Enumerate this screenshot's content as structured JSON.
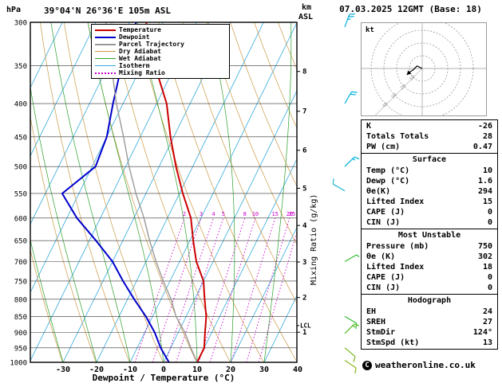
{
  "header": {
    "pressure_unit": "hPa",
    "station_title": "39°04'N 26°36'E 105m ASL",
    "altitude_unit_top": "km",
    "altitude_unit_bottom": "ASL",
    "date_title": "07.03.2025 12GMT (Base: 18)"
  },
  "chart_data": {
    "type": "line",
    "title": "Skew-T log-P sounding",
    "xlabel": "Dewpoint / Temperature (°C)",
    "ylabel_right": "Mixing Ratio (g/kg)",
    "x_ticks": [
      -30,
      -20,
      -10,
      0,
      10,
      20,
      30,
      40
    ],
    "pressure_ticks": [
      300,
      350,
      400,
      450,
      500,
      550,
      600,
      650,
      700,
      750,
      800,
      850,
      900,
      950,
      1000
    ],
    "pressure_range": [
      300,
      1000
    ],
    "km_ticks": [
      {
        "label": "1",
        "p": 899
      },
      {
        "label": "2",
        "p": 795
      },
      {
        "label": "3",
        "p": 701
      },
      {
        "label": "4",
        "p": 616
      },
      {
        "label": "5",
        "p": 540
      },
      {
        "label": "6",
        "p": 472
      },
      {
        "label": "7",
        "p": 411
      },
      {
        "label": "8",
        "p": 357
      }
    ],
    "lcl": {
      "label": "LCL",
      "p": 878
    },
    "mixing_ratio_values": [
      2,
      3,
      4,
      5,
      8,
      10,
      15,
      20,
      25
    ],
    "colors": {
      "temperature": "#cc0000",
      "dewpoint": "#0000cc",
      "parcel": "#999999",
      "dry_adiabat": "#cc9944",
      "wet_adiabat": "#2aa02a",
      "isotherm": "#33aadd",
      "mixing_ratio": "#cc00cc"
    },
    "series": [
      {
        "name": "Temperature",
        "color": "#cc0000",
        "width": 2,
        "points": [
          [
            1000,
            10
          ],
          [
            950,
            10
          ],
          [
            900,
            8
          ],
          [
            850,
            6
          ],
          [
            800,
            3
          ],
          [
            750,
            0
          ],
          [
            700,
            -5
          ],
          [
            650,
            -9
          ],
          [
            600,
            -13
          ],
          [
            550,
            -19
          ],
          [
            500,
            -25
          ],
          [
            450,
            -31
          ],
          [
            400,
            -37
          ],
          [
            350,
            -46
          ],
          [
            300,
            -55
          ]
        ]
      },
      {
        "name": "Dewpoint",
        "color": "#0000cc",
        "width": 2,
        "points": [
          [
            1000,
            1.6
          ],
          [
            950,
            -3
          ],
          [
            900,
            -7
          ],
          [
            850,
            -12
          ],
          [
            800,
            -18
          ],
          [
            750,
            -24
          ],
          [
            700,
            -30
          ],
          [
            650,
            -38
          ],
          [
            600,
            -47
          ],
          [
            550,
            -55
          ],
          [
            500,
            -49
          ],
          [
            450,
            -50
          ],
          [
            400,
            -53
          ],
          [
            350,
            -56
          ],
          [
            300,
            -58
          ]
        ]
      },
      {
        "name": "Parcel Trajectory",
        "color": "#999999",
        "width": 1.4,
        "points": [
          [
            1000,
            10
          ],
          [
            950,
            6
          ],
          [
            900,
            2
          ],
          [
            850,
            -3
          ],
          [
            800,
            -7
          ],
          [
            750,
            -12
          ],
          [
            700,
            -17
          ],
          [
            650,
            -22
          ],
          [
            600,
            -27
          ],
          [
            550,
            -33
          ],
          [
            500,
            -39
          ],
          [
            450,
            -45
          ],
          [
            400,
            -52
          ],
          [
            350,
            -59
          ],
          [
            300,
            -67
          ]
        ]
      }
    ],
    "wind_barbs": [
      {
        "p": 305,
        "dir": 20,
        "speed": 25,
        "color": "#00b0dd"
      },
      {
        "p": 400,
        "dir": 30,
        "speed": 20,
        "color": "#00b0dd"
      },
      {
        "p": 500,
        "dir": 45,
        "speed": 15,
        "color": "#00b0dd"
      },
      {
        "p": 545,
        "dir": 300,
        "speed": 10,
        "color": "#22bbcc"
      },
      {
        "p": 700,
        "dir": 60,
        "speed": 10,
        "color": "#33bb33"
      },
      {
        "p": 850,
        "dir": 120,
        "speed": 10,
        "color": "#33bb33"
      },
      {
        "p": 903,
        "dir": 45,
        "speed": 15,
        "color": "#55bb22"
      },
      {
        "p": 950,
        "dir": 130,
        "speed": 10,
        "color": "#7ab520"
      },
      {
        "p": 993,
        "dir": 124,
        "speed": 13,
        "color": "#8ab520"
      }
    ]
  },
  "legend": {
    "items": [
      {
        "label": "Temperature",
        "color": "#cc0000",
        "thick": 2,
        "style": "solid"
      },
      {
        "label": "Dewpoint",
        "color": "#0000cc",
        "thick": 2,
        "style": "solid"
      },
      {
        "label": "Parcel Trajectory",
        "color": "#999999",
        "thick": 2,
        "style": "solid"
      },
      {
        "label": "Dry Adiabat",
        "color": "#cc9944",
        "thick": 1,
        "style": "solid"
      },
      {
        "label": "Wet Adiabat",
        "color": "#2aa02a",
        "thick": 1,
        "style": "solid"
      },
      {
        "label": "Isotherm",
        "color": "#33aadd",
        "thick": 1,
        "style": "solid"
      },
      {
        "label": "Mixing Ratio",
        "color": "#cc00cc",
        "thick": 2,
        "style": "dotted"
      }
    ]
  },
  "hodograph": {
    "unit_label": "kt",
    "rings_kt": [
      10,
      20,
      30,
      40
    ],
    "ring_labels": [
      "10",
      "20",
      "30",
      "40"
    ],
    "trace": [
      [
        0,
        0
      ],
      [
        -4,
        2
      ],
      [
        -7,
        -1
      ],
      [
        -10,
        -3
      ],
      [
        -12,
        -5
      ]
    ]
  },
  "stats": {
    "sections": [
      {
        "header": null,
        "rows": [
          [
            "K",
            "-26"
          ],
          [
            "Totals Totals",
            "28"
          ],
          [
            "PW (cm)",
            "0.47"
          ]
        ]
      },
      {
        "header": "Surface",
        "rows": [
          [
            "Temp (°C)",
            "10"
          ],
          [
            "Dewp (°C)",
            "1.6"
          ],
          [
            "θe(K)",
            "294"
          ],
          [
            "Lifted Index",
            "15"
          ],
          [
            "CAPE (J)",
            "0"
          ],
          [
            "CIN (J)",
            "0"
          ]
        ]
      },
      {
        "header": "Most Unstable",
        "rows": [
          [
            "Pressure (mb)",
            "750"
          ],
          [
            "θe (K)",
            "302"
          ],
          [
            "Lifted Index",
            "18"
          ],
          [
            "CAPE (J)",
            "0"
          ],
          [
            "CIN (J)",
            "0"
          ]
        ]
      },
      {
        "header": "Hodograph",
        "rows": [
          [
            "EH",
            "24"
          ],
          [
            "SREH",
            "27"
          ],
          [
            "StmDir",
            "124°"
          ],
          [
            "StmSpd (kt)",
            "13"
          ]
        ]
      }
    ]
  },
  "footer": {
    "symbol": "C",
    "text": "weatheronline.co.uk"
  }
}
